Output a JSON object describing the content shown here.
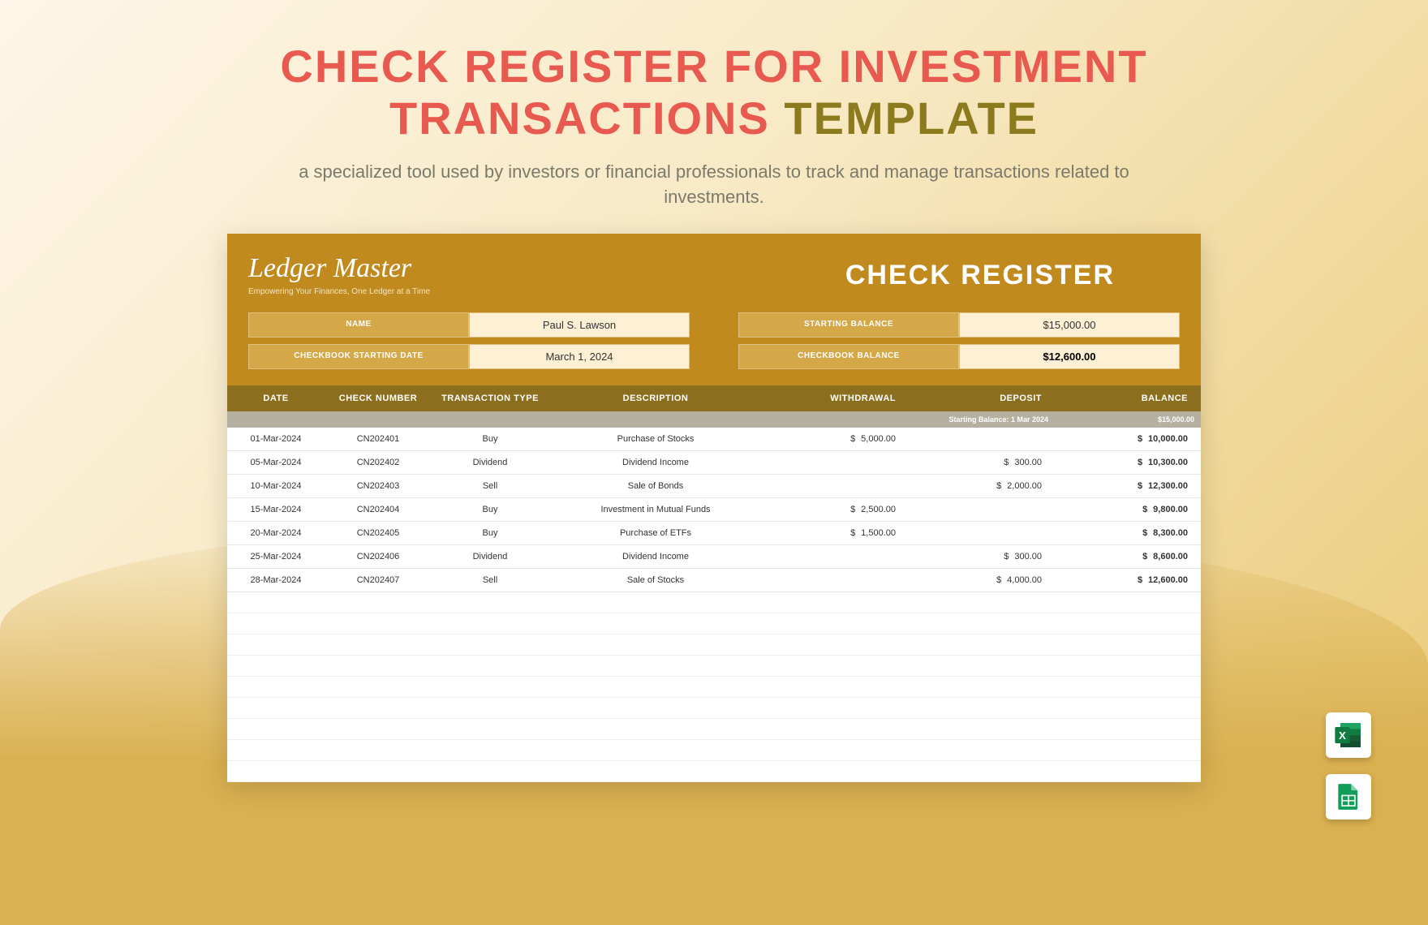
{
  "title": {
    "line1": "CHECK REGISTER FOR INVESTMENT",
    "line2_main": "TRANSACTIONS",
    "line2_suffix": "TEMPLATE"
  },
  "subtitle": "a specialized tool used by investors or financial professionals to track and manage transactions related to investments.",
  "brand": {
    "name": "Ledger Master",
    "tagline": "Empowering Your Finances, One Ledger at a Time"
  },
  "register_title": "CHECK REGISTER",
  "info": {
    "name_label": "NAME",
    "name_value": "Paul S. Lawson",
    "start_date_label": "CHECKBOOK STARTING DATE",
    "start_date_value": "March 1, 2024",
    "starting_balance_label": "STARTING BALANCE",
    "starting_balance_value": "$15,000.00",
    "checkbook_balance_label": "CHECKBOOK BALANCE",
    "checkbook_balance_value": "$12,600.00"
  },
  "columns": {
    "date": "DATE",
    "check": "CHECK NUMBER",
    "type": "TRANSACTION TYPE",
    "desc": "DESCRIPTION",
    "withdrawal": "WITHDRAWAL",
    "deposit": "DEPOSIT",
    "balance": "BALANCE"
  },
  "subheader": {
    "label": "Starting Balance: 1 Mar 2024",
    "amount": "$15,000.00"
  },
  "rows": [
    {
      "date": "01-Mar-2024",
      "check": "CN202401",
      "type": "Buy",
      "desc": "Purchase of Stocks",
      "wd": "5,000.00",
      "dp": "",
      "bal": "10,000.00"
    },
    {
      "date": "05-Mar-2024",
      "check": "CN202402",
      "type": "Dividend",
      "desc": "Dividend Income",
      "wd": "",
      "dp": "300.00",
      "bal": "10,300.00"
    },
    {
      "date": "10-Mar-2024",
      "check": "CN202403",
      "type": "Sell",
      "desc": "Sale of Bonds",
      "wd": "",
      "dp": "2,000.00",
      "bal": "12,300.00"
    },
    {
      "date": "15-Mar-2024",
      "check": "CN202404",
      "type": "Buy",
      "desc": "Investment in Mutual Funds",
      "wd": "2,500.00",
      "dp": "",
      "bal": "9,800.00"
    },
    {
      "date": "20-Mar-2024",
      "check": "CN202405",
      "type": "Buy",
      "desc": "Purchase of ETFs",
      "wd": "1,500.00",
      "dp": "",
      "bal": "8,300.00"
    },
    {
      "date": "25-Mar-2024",
      "check": "CN202406",
      "type": "Dividend",
      "desc": "Dividend Income",
      "wd": "",
      "dp": "300.00",
      "bal": "8,600.00"
    },
    {
      "date": "28-Mar-2024",
      "check": "CN202407",
      "type": "Sell",
      "desc": "Sale of Stocks",
      "wd": "",
      "dp": "4,000.00",
      "bal": "12,600.00"
    }
  ],
  "colors": {
    "title_main": "#e85a4f",
    "title_suffix": "#8c7a1e",
    "banner_bg": "#c08a1e",
    "header_bg": "#8c6f1e",
    "sub_row_bg": "#b5b0a0",
    "info_label_bg": "#d4a849",
    "info_value_bg": "#fdf0d5",
    "excel": "#107c41",
    "sheets": "#0f9d58"
  },
  "icons": {
    "excel": "excel-icon",
    "sheets": "google-sheets-icon"
  }
}
